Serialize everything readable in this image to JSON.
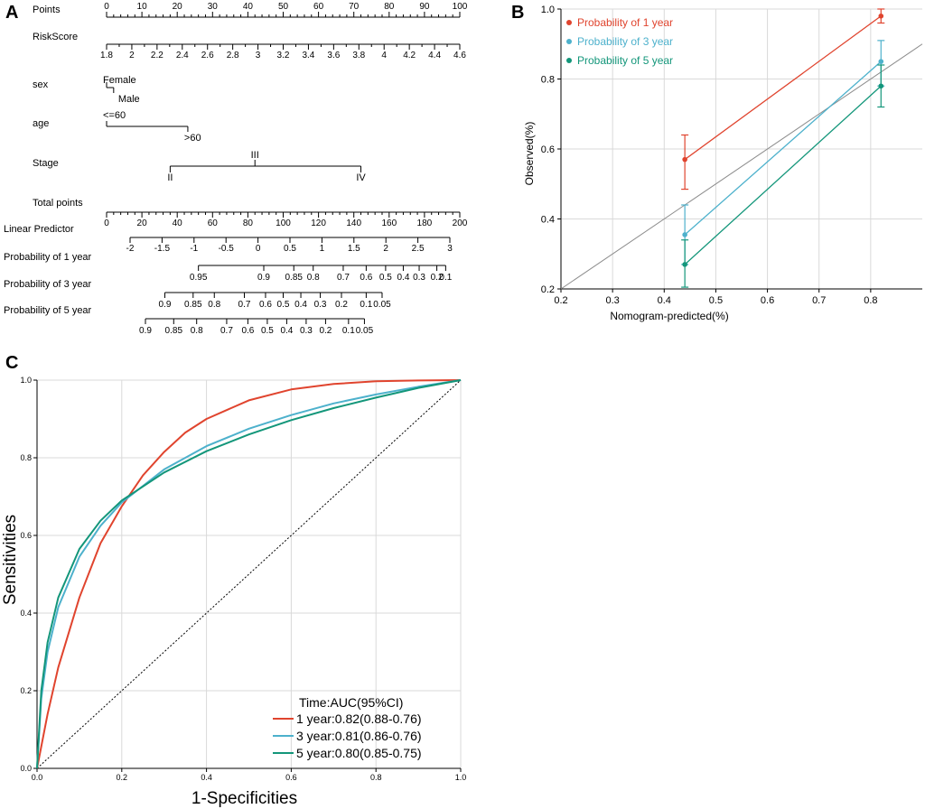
{
  "panels": {
    "a": "A",
    "b": "B",
    "c": "C"
  },
  "colors": {
    "one_year": "#E0442E",
    "three_year": "#4DB1CC",
    "five_year": "#13967A",
    "grid": "#d9d9d9",
    "diagonal": "#8c8c8c",
    "axis": "#000000"
  },
  "chart_data": [
    {
      "type": "nomogram",
      "panel": "A",
      "rows": [
        {
          "name": "Points",
          "kind": "scale",
          "range": [
            0,
            100
          ],
          "ticks": [
            "0",
            "10",
            "20",
            "30",
            "40",
            "50",
            "60",
            "70",
            "80",
            "90",
            "100"
          ]
        },
        {
          "name": "RiskScore",
          "kind": "scale",
          "range": [
            1.8,
            4.6
          ],
          "ticks": [
            "1.8",
            "2",
            "2.2",
            "2.4",
            "2.6",
            "2.8",
            "3",
            "3.2",
            "3.4",
            "3.6",
            "3.8",
            "4",
            "4.2",
            "4.4",
            "4.6"
          ]
        },
        {
          "name": "sex",
          "kind": "categorical",
          "levels": [
            {
              "label": "Female",
              "points": 0
            },
            {
              "label": "Male",
              "points": 2
            }
          ]
        },
        {
          "name": "age",
          "kind": "categorical",
          "levels": [
            {
              "label": "<=60",
              "points": 0
            },
            {
              "label": ">60",
              "points": 23
            }
          ]
        },
        {
          "name": "Stage",
          "kind": "categorical",
          "levels": [
            {
              "label": "II",
              "points": 18
            },
            {
              "label": "III",
              "points": 42
            },
            {
              "label": "IV",
              "points": 72
            }
          ]
        },
        {
          "name": "Total points",
          "kind": "scale",
          "range": [
            0,
            200
          ],
          "ticks": [
            "0",
            "20",
            "40",
            "60",
            "80",
            "100",
            "120",
            "140",
            "160",
            "180",
            "200"
          ]
        },
        {
          "name": "Linear Predictor",
          "kind": "scale",
          "range": [
            -2,
            3
          ],
          "ticks": [
            "-2",
            "-1.5",
            "-1",
            "-0.5",
            "0",
            "0.5",
            "1",
            "1.5",
            "2",
            "2.5",
            "3"
          ]
        },
        {
          "name": "Probability of 1 year",
          "kind": "probability",
          "ticks": [
            "0.95",
            "0.9",
            "0.85",
            "0.8",
            "0.7",
            "0.6",
            "0.5",
            "0.4",
            "0.3",
            "0.2",
            "0.1"
          ],
          "tick_total_points": [
            52,
            89,
            106,
            117,
            134,
            147,
            158,
            168,
            177,
            187,
            192
          ]
        },
        {
          "name": "Probability of 3 year",
          "kind": "probability",
          "ticks": [
            "0.9",
            "0.85",
            "0.8",
            "0.7",
            "0.6",
            "0.5",
            "0.4",
            "0.3",
            "0.2",
            "0.1",
            "0.05"
          ],
          "tick_total_points": [
            33,
            49,
            61,
            78,
            90,
            100,
            110,
            121,
            133,
            147,
            156
          ]
        },
        {
          "name": "Probability of 5 year",
          "kind": "probability",
          "ticks": [
            "0.9",
            "0.85",
            "0.8",
            "0.7",
            "0.6",
            "0.5",
            "0.4",
            "0.3",
            "0.2",
            "0.1",
            "0.05"
          ],
          "tick_total_points": [
            22,
            38,
            51,
            68,
            80,
            91,
            102,
            113,
            124,
            137,
            146
          ]
        }
      ]
    },
    {
      "type": "line",
      "panel": "B",
      "xlabel": "Nomogram-predicted(%)",
      "ylabel": "Observed(%)",
      "xlim": [
        0.2,
        0.9
      ],
      "ylim": [
        0.2,
        1.0
      ],
      "xticks": [
        0.2,
        0.3,
        0.4,
        0.5,
        0.6,
        0.7,
        0.8
      ],
      "yticks": [
        0.2,
        0.4,
        0.6,
        0.8,
        1.0
      ],
      "xtick_labels": [
        "0.2",
        "0.3",
        "0.4",
        "0.5",
        "0.6",
        "0.7",
        "0.8"
      ],
      "ytick_labels": [
        "0.2",
        "0.4",
        "0.6",
        "0.8",
        "1.0"
      ],
      "grid": true,
      "reference_line": "y=x",
      "legend_position": "top-left",
      "series": [
        {
          "name": "Probability of 1 year",
          "color_key": "one_year",
          "x": [
            0.44,
            0.82
          ],
          "y": [
            0.57,
            0.98
          ],
          "err_low": [
            0.485,
            0.96
          ],
          "err_high": [
            0.64,
            1.0
          ]
        },
        {
          "name": "Probability of 3 year",
          "color_key": "three_year",
          "x": [
            0.44,
            0.82
          ],
          "y": [
            0.355,
            0.85
          ],
          "err_low": [
            0.27,
            0.78
          ],
          "err_high": [
            0.44,
            0.91
          ]
        },
        {
          "name": "Probability of 5 year",
          "color_key": "five_year",
          "x": [
            0.44,
            0.82
          ],
          "y": [
            0.27,
            0.78
          ],
          "err_low": [
            0.205,
            0.72
          ],
          "err_high": [
            0.34,
            0.84
          ]
        }
      ]
    },
    {
      "type": "line",
      "panel": "C",
      "xlabel": "1-Specificities",
      "ylabel": "Sensitivities",
      "xlim": [
        0,
        1
      ],
      "ylim": [
        0,
        1
      ],
      "ticks": [
        0,
        0.2,
        0.4,
        0.6,
        0.8,
        1.0
      ],
      "tick_labels": [
        "0.0",
        "0.2",
        "0.4",
        "0.6",
        "0.8",
        "1.0"
      ],
      "grid": true,
      "reference_line": "diagonal dotted",
      "legend_title": "Time:AUC(95%CI)",
      "legend_position": "bottom-right",
      "series": [
        {
          "name": "1 year:0.82(0.88-0.76)",
          "color_key": "one_year",
          "x": [
            0,
            0.025,
            0.05,
            0.1,
            0.15,
            0.2,
            0.25,
            0.3,
            0.35,
            0.4,
            0.5,
            0.6,
            0.7,
            0.8,
            0.9,
            1.0
          ],
          "y": [
            0,
            0.14,
            0.26,
            0.44,
            0.58,
            0.675,
            0.755,
            0.815,
            0.865,
            0.9,
            0.948,
            0.976,
            0.99,
            0.997,
            0.999,
            1.0
          ]
        },
        {
          "name": "3 year:0.81(0.86-0.76)",
          "color_key": "three_year",
          "x": [
            0,
            0.01,
            0.025,
            0.05,
            0.1,
            0.15,
            0.2,
            0.3,
            0.4,
            0.5,
            0.6,
            0.7,
            0.8,
            0.9,
            1.0
          ],
          "y": [
            0,
            0.18,
            0.3,
            0.415,
            0.545,
            0.625,
            0.685,
            0.77,
            0.83,
            0.875,
            0.91,
            0.94,
            0.963,
            0.983,
            1.0
          ]
        },
        {
          "name": "5 year:0.80(0.85-0.75)",
          "color_key": "five_year",
          "x": [
            0,
            0.01,
            0.025,
            0.05,
            0.1,
            0.15,
            0.2,
            0.3,
            0.4,
            0.5,
            0.6,
            0.7,
            0.8,
            0.9,
            1.0
          ],
          "y": [
            0,
            0.2,
            0.325,
            0.44,
            0.565,
            0.638,
            0.69,
            0.762,
            0.817,
            0.86,
            0.897,
            0.928,
            0.955,
            0.98,
            1.0
          ]
        }
      ]
    }
  ]
}
